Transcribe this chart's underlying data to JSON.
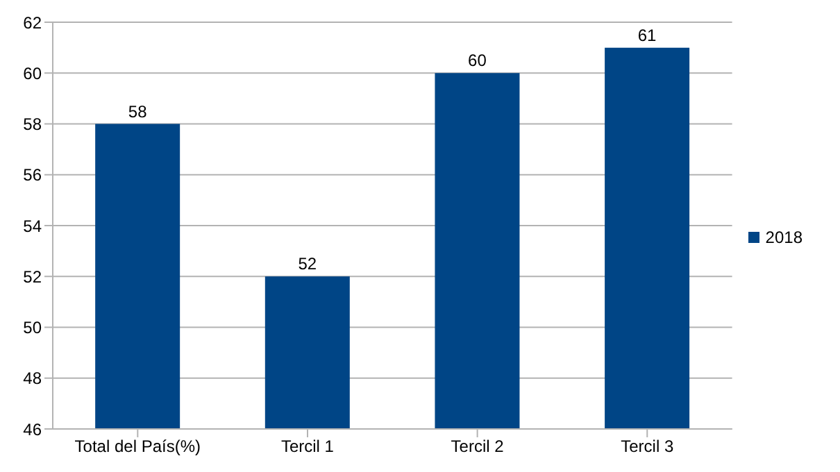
{
  "chart_data": {
    "type": "bar",
    "categories": [
      "Total del País(%)",
      "Tercil 1",
      "Tercil 2",
      "Tercil 3"
    ],
    "series": [
      {
        "name": "2018",
        "color": "#004586",
        "values": [
          58,
          52,
          60,
          61
        ]
      }
    ],
    "ylim": [
      46,
      62
    ],
    "yticks": [
      46,
      48,
      50,
      52,
      54,
      56,
      58,
      60,
      62
    ],
    "grid": "y",
    "legend": "right",
    "data_labels": true
  }
}
